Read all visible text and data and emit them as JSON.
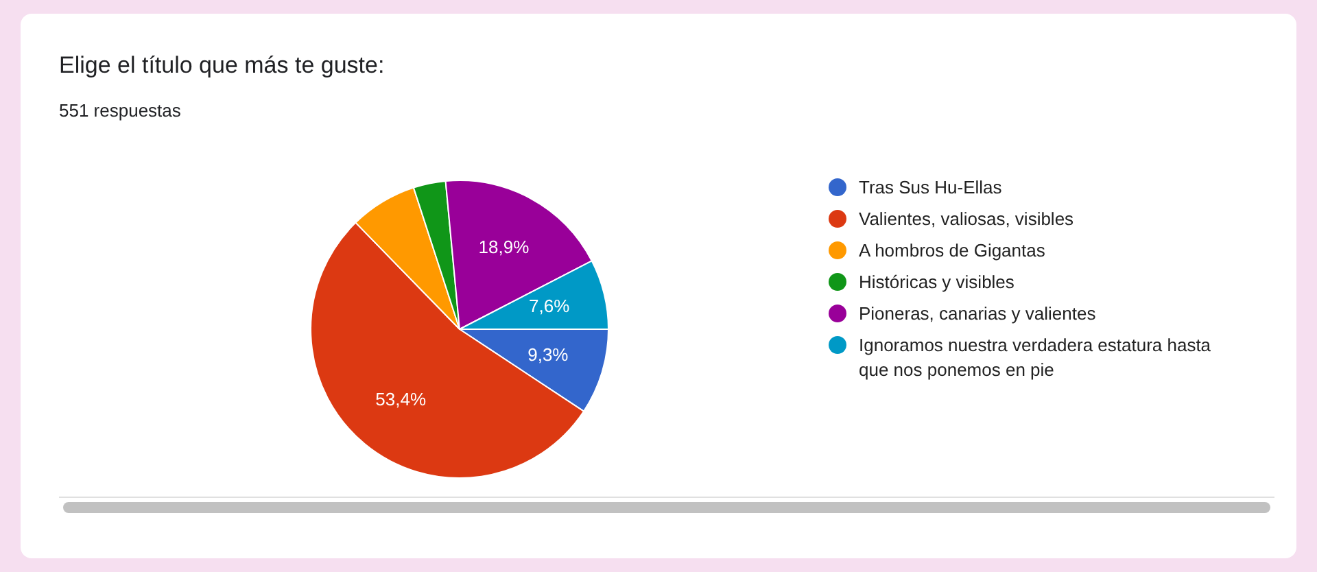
{
  "chart_data": {
    "type": "pie",
    "title": "Elige el título que más te guste:",
    "subtitle": "551 respuestas",
    "categories": [
      "Tras Sus Hu-Ellas",
      "Valientes, valiosas, visibles",
      "A hombros de Gigantas",
      "Históricas y visibles",
      "Pioneras, canarias y valientes",
      "Ignoramos nuestra verdadera estatura hasta que nos ponemos en pie"
    ],
    "values": [
      9.3,
      53.4,
      7.3,
      3.5,
      18.9,
      7.6
    ],
    "colors": [
      "#3366cc",
      "#dc3912",
      "#ff9900",
      "#109618",
      "#990099",
      "#0099c6"
    ],
    "value_labels": [
      "9,3%",
      "53,4%",
      null,
      null,
      "18,9%",
      "7,6%"
    ],
    "legend": "right"
  }
}
